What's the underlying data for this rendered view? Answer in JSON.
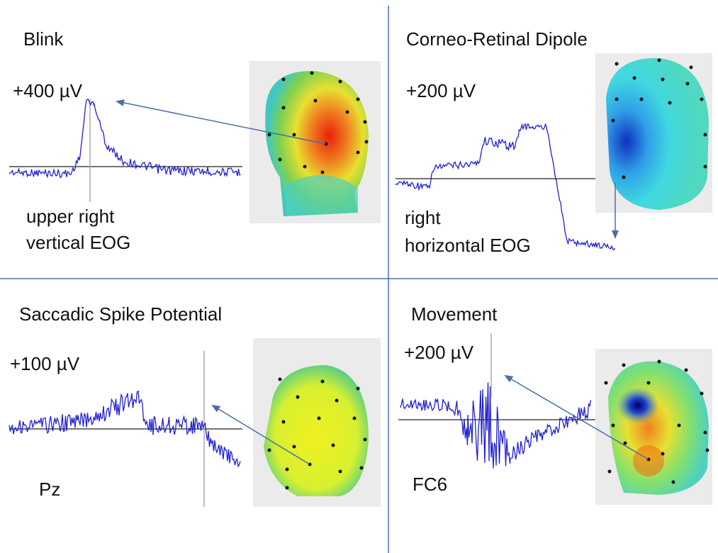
{
  "panels": [
    {
      "title": "Blink",
      "amplitude": "+400 µV",
      "channel": [
        "upper right",
        "vertical EOG"
      ]
    },
    {
      "title": "Corneo-Retinal Dipole",
      "amplitude": "+200 µV",
      "channel": [
        "right",
        "horizontal EOG"
      ]
    },
    {
      "title": "Saccadic Spike Potential",
      "amplitude": "+100 µV",
      "channel": [
        "Pz"
      ]
    },
    {
      "title": "Movement",
      "amplitude": "+200 µV",
      "channel": [
        "FC6"
      ]
    }
  ]
}
